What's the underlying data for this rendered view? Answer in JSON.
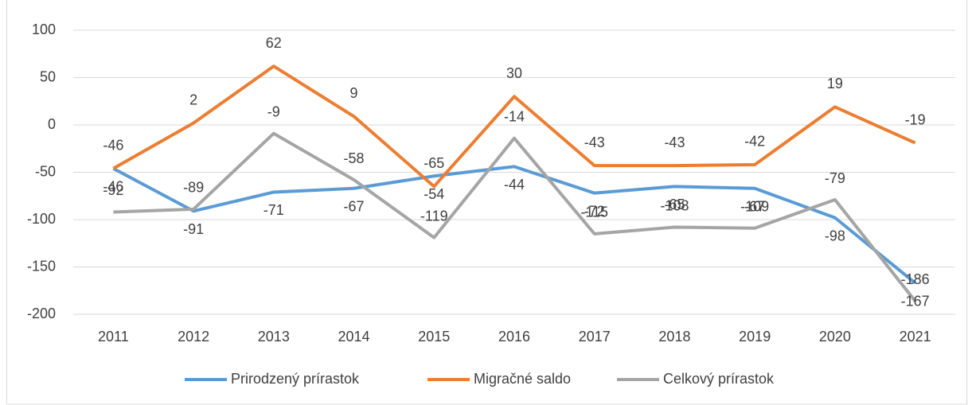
{
  "chart_data": {
    "type": "line",
    "categories": [
      "2011",
      "2012",
      "2013",
      "2014",
      "2015",
      "2016",
      "2017",
      "2018",
      "2019",
      "2020",
      "2021"
    ],
    "series": [
      {
        "name": "Prirodzený prírastok",
        "color": "#5b9bd5",
        "values": [
          -46,
          -91,
          -71,
          -67,
          -54,
          -44,
          -72,
          -65,
          -67,
          -98,
          -167
        ]
      },
      {
        "name": "Migračné saldo",
        "color": "#ed7d31",
        "values": [
          -46,
          2,
          62,
          9,
          -65,
          30,
          -43,
          -43,
          -42,
          19,
          -19
        ]
      },
      {
        "name": "Celkový prírastok",
        "color": "#a5a5a5",
        "values": [
          -92,
          -89,
          -9,
          -58,
          -119,
          -14,
          -115,
          -108,
          -109,
          -79,
          -186
        ]
      }
    ],
    "ylim": [
      -200,
      100
    ],
    "yticks": [
      -200,
      -150,
      -100,
      -50,
      0,
      50,
      100
    ],
    "grid": true,
    "legend": "bottom"
  }
}
